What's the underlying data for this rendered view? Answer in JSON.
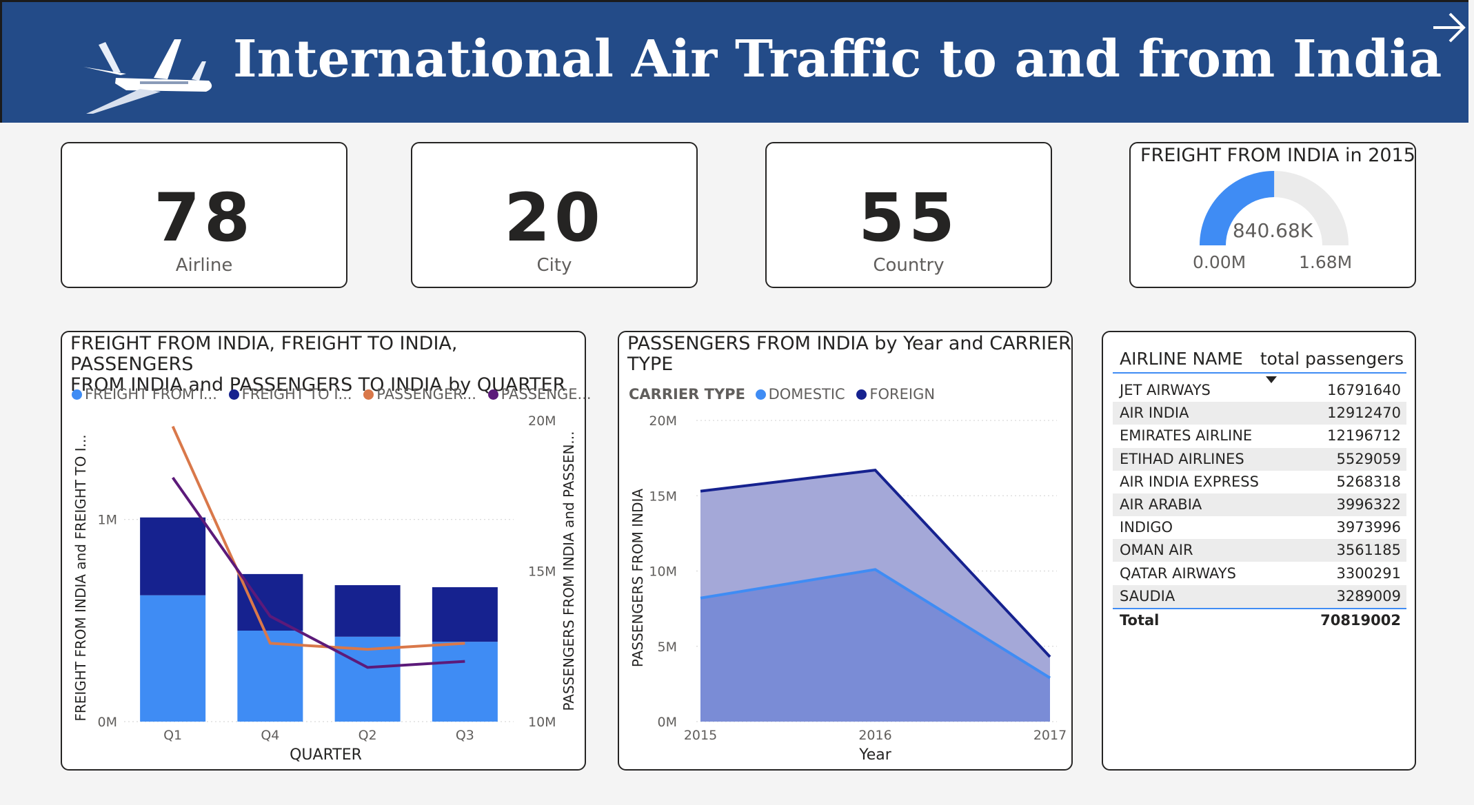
{
  "header": {
    "title": "International Air Traffic to and from India"
  },
  "kpis": [
    {
      "value": "78",
      "label": "Airline"
    },
    {
      "value": "20",
      "label": "City"
    },
    {
      "value": "55",
      "label": "Country"
    }
  ],
  "gauge": {
    "title": "FREIGHT FROM INDIA in 2015",
    "value_label": "840.68K",
    "min_label": "0.00M",
    "max_label": "1.68M",
    "value": 840680,
    "min": 0,
    "max": 1680000,
    "fill_color": "#3f8cf4",
    "track_color": "#ebebeb"
  },
  "colors": {
    "light_blue": "#3f8cf4",
    "dark_blue": "#16228f",
    "orange": "#d9784a",
    "purple": "#5c1a7a",
    "header": "#234b88"
  },
  "chart_data": [
    {
      "type": "bar",
      "title": "FREIGHT FROM INDIA, FREIGHT TO INDIA, PASSENGERS FROM INDIA and PASSENGERS TO INDIA by QUARTER",
      "title_lines": [
        "FREIGHT FROM INDIA, FREIGHT TO INDIA, PASSENGERS",
        "FROM INDIA and PASSENGERS TO INDIA by QUARTER"
      ],
      "legend": [
        "FREIGHT FROM I...",
        "FREIGHT TO I...",
        "PASSENGER...",
        "PASSENGE..."
      ],
      "categories": [
        "Q1",
        "Q4",
        "Q2",
        "Q3"
      ],
      "xlabel": "QUARTER",
      "ylabel": "FREIGHT FROM INDIA and FREIGHT TO I...",
      "ylabel_right": "PASSENGERS FROM INDIA and PASSEN...",
      "y_ticks": [
        "0M",
        "1M"
      ],
      "y_ticks_values": [
        0,
        1000000
      ],
      "y_right_ticks": [
        "10M",
        "15M",
        "20M"
      ],
      "y_right_ticks_values": [
        10000000,
        15000000,
        20000000
      ],
      "ylim": [
        0,
        1490000
      ],
      "ylim_right": [
        10000000,
        20000000
      ],
      "series": [
        {
          "name": "FREIGHT FROM I...",
          "kind": "stacked-bar",
          "axis": "left",
          "color": "#3f8cf4",
          "values": [
            625000,
            450000,
            420000,
            395000
          ]
        },
        {
          "name": "FREIGHT TO I...",
          "kind": "stacked-bar",
          "axis": "left",
          "color": "#16228f",
          "values": [
            385000,
            280000,
            255000,
            270000
          ]
        },
        {
          "name": "PASSENGER...",
          "kind": "line",
          "axis": "right",
          "color": "#d9784a",
          "values": [
            19800000,
            12600000,
            12400000,
            12600000
          ]
        },
        {
          "name": "PASSENGE...",
          "kind": "line",
          "axis": "right",
          "color": "#5c1a7a",
          "values": [
            18100000,
            13500000,
            11800000,
            12000000
          ]
        }
      ]
    },
    {
      "type": "area",
      "title": "PASSENGERS FROM INDIA by Year and CARRIER TYPE",
      "title_lines": [
        "PASSENGERS FROM INDIA by Year and CARRIER",
        "TYPE"
      ],
      "legend_title": "CARRIER TYPE",
      "legend": [
        "DOMESTIC",
        "FOREIGN"
      ],
      "x": [
        "2015",
        "2016",
        "2017"
      ],
      "xlabel": "Year",
      "ylabel": "PASSENGERS FROM INDIA",
      "y_ticks": [
        "0M",
        "5M",
        "10M",
        "15M",
        "20M"
      ],
      "y_ticks_values": [
        0,
        5000000,
        10000000,
        15000000,
        20000000
      ],
      "ylim": [
        0,
        20000000
      ],
      "series": [
        {
          "name": "DOMESTIC",
          "color": "#3f8cf4",
          "fill": "#7a8cd6",
          "values": [
            8200000,
            10100000,
            2900000
          ]
        },
        {
          "name": "FOREIGN",
          "color": "#16228f",
          "fill": "#a4a8d8",
          "values": [
            15300000,
            16700000,
            4300000
          ]
        }
      ]
    },
    {
      "type": "table",
      "columns": [
        "AIRLINE NAME",
        "total passengers"
      ],
      "rows": [
        {
          "name": "JET AIRWAYS",
          "value": "16791640"
        },
        {
          "name": "AIR INDIA",
          "value": "12912470"
        },
        {
          "name": "EMIRATES AIRLINE",
          "value": "12196712"
        },
        {
          "name": "ETIHAD AIRLINES",
          "value": "5529059"
        },
        {
          "name": "AIR INDIA EXPRESS",
          "value": "5268318"
        },
        {
          "name": "AIR ARABIA",
          "value": "3996322"
        },
        {
          "name": "INDIGO",
          "value": "3973996"
        },
        {
          "name": "OMAN AIR",
          "value": "3561185"
        },
        {
          "name": "QATAR AIRWAYS",
          "value": "3300291"
        },
        {
          "name": "SAUDIA",
          "value": "3289009"
        }
      ],
      "total_label": "Total",
      "total_value": "70819002"
    }
  ]
}
